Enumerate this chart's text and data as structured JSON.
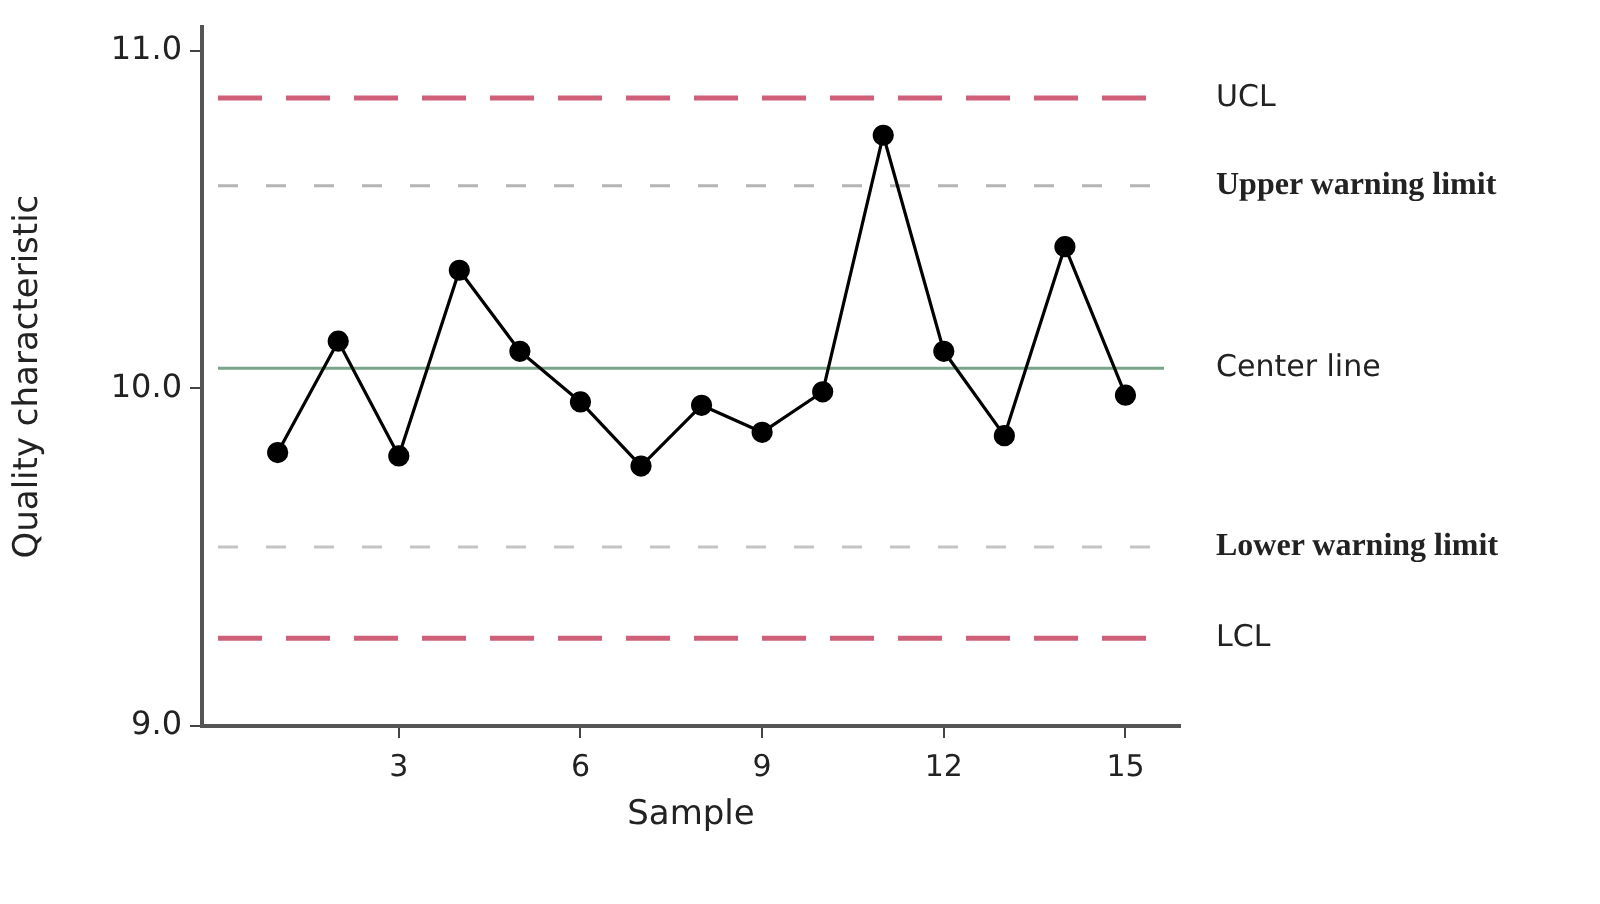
{
  "chart_data": {
    "type": "line",
    "xlabel": "Sample",
    "ylabel": "Quality characteristic",
    "x": [
      1,
      2,
      3,
      4,
      5,
      6,
      7,
      8,
      9,
      10,
      11,
      12,
      13,
      14,
      15
    ],
    "series": [
      {
        "color": "#000000",
        "values": [
          9.81,
          10.14,
          9.8,
          10.35,
          10.11,
          9.96,
          9.77,
          9.95,
          9.87,
          9.99,
          10.75,
          10.11,
          9.86,
          10.42,
          9.98
        ]
      }
    ],
    "xlim": [
      -0.25,
      15.9
    ],
    "xticks": [
      3,
      6,
      9,
      12,
      15
    ],
    "ylim": [
      9,
      11.07
    ],
    "yticks": [
      {
        "value": 9,
        "label": "9.0"
      },
      {
        "value": 10,
        "label": "10.0"
      },
      {
        "value": 11,
        "label": "11.0"
      }
    ],
    "ref_lines": [
      {
        "axis": "y",
        "value": 10.86,
        "label": "UCL",
        "color": "#d0607a",
        "line_style": "dashed"
      },
      {
        "axis": "y",
        "value": 10.6,
        "label": "Upper warning limit",
        "color": "#b4b4b4",
        "line_style": "dotted"
      },
      {
        "axis": "y",
        "value": 10.06,
        "label": "Center line",
        "color": "#7aa58a",
        "line_style": "solid"
      },
      {
        "axis": "y",
        "value": 9.53,
        "label": "Lower warning limit",
        "color": "#c4c4c4",
        "line_style": "dotted"
      },
      {
        "axis": "y",
        "value": 9.26,
        "label": "LCL",
        "color": "#d0607a",
        "line_style": "dashed"
      }
    ],
    "grid": false,
    "legend": false,
    "marker": "circle",
    "line_style": "solid"
  }
}
